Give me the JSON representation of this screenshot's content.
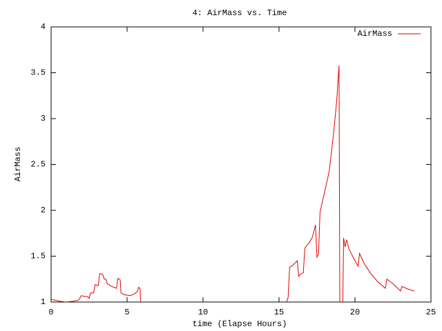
{
  "chart_data": {
    "type": "line",
    "title": "4: AirMass vs. Time",
    "x_label": "time (Elapse Hours)",
    "y_label": "AirMass",
    "x": [
      0,
      0.5,
      1,
      1.5,
      1.8,
      2.0,
      2.2,
      2.4,
      2.5,
      2.6,
      2.8,
      2.9,
      3.1,
      3.2,
      3.4,
      3.5,
      3.6,
      3.7,
      4.0,
      4.3,
      4.4,
      4.55,
      4.6,
      4.8,
      5.2,
      5.5,
      5.7,
      5.75,
      5.85,
      5.9,
      null,
      15.5,
      15.6,
      15.7,
      15.9,
      16.2,
      16.3,
      16.4,
      16.6,
      16.7,
      17.0,
      17.2,
      17.4,
      17.5,
      17.6,
      17.7,
      18.0,
      18.3,
      18.6,
      18.8,
      18.95,
      19.0,
      null,
      19.2,
      19.25,
      19.35,
      19.45,
      19.6,
      20.0,
      20.2,
      20.3,
      20.6,
      21,
      21.5,
      22,
      22.1,
      22.5,
      23,
      23.1,
      23.5,
      23.9
    ],
    "series": [
      {
        "name": "AirMass",
        "color": "#e00000",
        "values": [
          1.03,
          1.01,
          1.0,
          1.01,
          1.02,
          1.07,
          1.06,
          1.06,
          1.04,
          1.1,
          1.1,
          1.19,
          1.18,
          1.31,
          1.3,
          1.25,
          1.25,
          1.2,
          1.17,
          1.15,
          1.26,
          1.24,
          1.1,
          1.08,
          1.07,
          1.09,
          1.12,
          1.16,
          1.15,
          1.0,
          null,
          1.0,
          1.05,
          1.38,
          1.4,
          1.45,
          1.28,
          1.3,
          1.32,
          1.59,
          1.65,
          1.71,
          1.84,
          1.49,
          1.52,
          1.98,
          2.2,
          2.42,
          2.85,
          3.2,
          3.58,
          1.0,
          null,
          1.0,
          1.7,
          1.6,
          1.68,
          1.58,
          1.45,
          1.39,
          1.53,
          1.42,
          1.32,
          1.22,
          1.15,
          1.25,
          1.2,
          1.12,
          1.17,
          1.14,
          1.12
        ]
      }
    ],
    "xlim": [
      0,
      25
    ],
    "xticks": [
      0,
      5,
      10,
      15,
      20,
      25
    ],
    "ylim": [
      1,
      4
    ],
    "yticks": [
      1,
      1.5,
      2,
      2.5,
      3,
      3.5,
      4
    ],
    "legend": "top-right"
  }
}
